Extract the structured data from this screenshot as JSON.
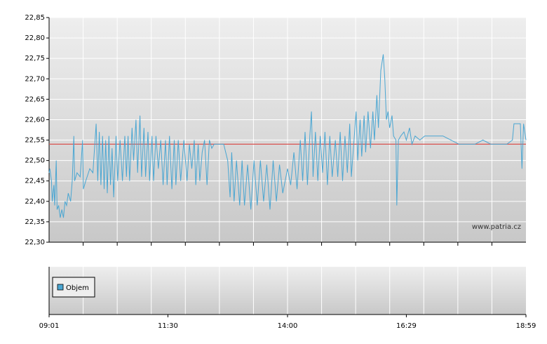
{
  "chart_data": [
    {
      "type": "line",
      "color": "#4aa6d2",
      "grid": true,
      "watermark": "www.patria.cz",
      "reference_line": {
        "value": 22.54,
        "color": "#d9534f"
      },
      "ylim": [
        22.3,
        22.85
      ],
      "yticks": [
        {
          "value": 22.3,
          "label": "22,30"
        },
        {
          "value": 22.35,
          "label": "22,35"
        },
        {
          "value": 22.4,
          "label": "22,40"
        },
        {
          "value": 22.45,
          "label": "22,45"
        },
        {
          "value": 22.5,
          "label": "22,50"
        },
        {
          "value": 22.55,
          "label": "22,55"
        },
        {
          "value": 22.6,
          "label": "22,60"
        },
        {
          "value": 22.65,
          "label": "22,65"
        },
        {
          "value": 22.7,
          "label": "22,70"
        },
        {
          "value": 22.75,
          "label": "22,75"
        },
        {
          "value": 22.8,
          "label": "22,80"
        },
        {
          "value": 22.85,
          "label": "22,85"
        }
      ],
      "xlim": [
        "09:01",
        "18:59"
      ],
      "xticks": [
        "09:01",
        "11:30",
        "14:00",
        "16:29",
        "18:59"
      ],
      "x": [
        "09:01",
        "09:02",
        "09:04",
        "09:05",
        "09:07",
        "09:08",
        "09:10",
        "09:11",
        "09:13",
        "09:15",
        "09:17",
        "09:19",
        "09:21",
        "09:23",
        "09:25",
        "09:28",
        "09:30",
        "09:32",
        "09:33",
        "09:36",
        "09:40",
        "09:43",
        "09:44",
        "09:47",
        "09:52",
        "09:56",
        "10:00",
        "10:02",
        "10:04",
        "10:06",
        "10:08",
        "10:10",
        "10:12",
        "10:14",
        "10:16",
        "10:18",
        "10:20",
        "10:22",
        "10:25",
        "10:27",
        "10:30",
        "10:33",
        "10:36",
        "10:38",
        "10:40",
        "10:42",
        "10:45",
        "10:47",
        "10:50",
        "10:52",
        "10:55",
        "10:57",
        "11:00",
        "11:02",
        "11:05",
        "11:07",
        "11:10",
        "11:12",
        "11:15",
        "11:18",
        "11:21",
        "11:24",
        "11:27",
        "11:29",
        "11:32",
        "11:35",
        "11:38",
        "11:40",
        "11:43",
        "11:46",
        "11:50",
        "11:54",
        "11:57",
        "12:00",
        "12:03",
        "12:05",
        "12:08",
        "12:10",
        "12:13",
        "12:16",
        "12:19",
        "12:22",
        "12:25",
        "12:28",
        "12:31",
        "12:35",
        "12:40",
        "12:45",
        "12:48",
        "12:50",
        "12:53",
        "12:56",
        "13:00",
        "13:03",
        "13:06",
        "13:10",
        "13:14",
        "13:18",
        "13:22",
        "13:26",
        "13:30",
        "13:34",
        "13:38",
        "13:42",
        "13:46",
        "13:50",
        "13:54",
        "14:00",
        "14:04",
        "14:08",
        "14:12",
        "14:16",
        "14:19",
        "14:22",
        "14:25",
        "14:28",
        "14:30",
        "14:32",
        "14:35",
        "14:38",
        "14:41",
        "14:44",
        "14:47",
        "14:50",
        "14:53",
        "14:56",
        "15:00",
        "15:03",
        "15:06",
        "15:09",
        "15:12",
        "15:15",
        "15:18",
        "15:20",
        "15:23",
        "15:26",
        "15:28",
        "15:31",
        "15:33",
        "15:36",
        "15:38",
        "15:41",
        "15:44",
        "15:47",
        "15:49",
        "15:52",
        "15:54",
        "15:57",
        "16:00",
        "16:02",
        "16:04",
        "16:06",
        "16:08",
        "16:11",
        "16:13",
        "16:16",
        "16:17",
        "16:19",
        "16:22",
        "16:26",
        "16:29",
        "16:33",
        "16:36",
        "16:40",
        "16:46",
        "16:52",
        "17:00",
        "17:15",
        "17:35",
        "17:55",
        "18:05",
        "18:15",
        "18:35",
        "18:42",
        "18:44",
        "18:52",
        "18:54",
        "18:56",
        "18:59"
      ],
      "values": [
        22.47,
        22.48,
        22.45,
        22.4,
        22.44,
        22.39,
        22.5,
        22.38,
        22.39,
        22.36,
        22.38,
        22.36,
        22.4,
        22.39,
        22.42,
        22.4,
        22.45,
        22.56,
        22.45,
        22.47,
        22.46,
        22.55,
        22.43,
        22.45,
        22.48,
        22.47,
        22.59,
        22.45,
        22.57,
        22.44,
        22.56,
        22.43,
        22.55,
        22.42,
        22.56,
        22.44,
        22.53,
        22.41,
        22.56,
        22.45,
        22.55,
        22.45,
        22.56,
        22.46,
        22.56,
        22.45,
        22.58,
        22.5,
        22.6,
        22.47,
        22.61,
        22.46,
        22.58,
        22.46,
        22.57,
        22.45,
        22.56,
        22.45,
        22.56,
        22.48,
        22.55,
        22.44,
        22.55,
        22.44,
        22.56,
        22.43,
        22.55,
        22.44,
        22.55,
        22.45,
        22.55,
        22.45,
        22.54,
        22.48,
        22.55,
        22.44,
        22.54,
        22.45,
        22.52,
        22.55,
        22.44,
        22.55,
        22.53,
        22.54,
        22.54,
        22.54,
        22.54,
        22.5,
        22.41,
        22.52,
        22.4,
        22.5,
        22.39,
        22.5,
        22.39,
        22.49,
        22.38,
        22.5,
        22.39,
        22.5,
        22.4,
        22.49,
        22.38,
        22.5,
        22.4,
        22.49,
        22.42,
        22.48,
        22.44,
        22.52,
        22.43,
        22.55,
        22.45,
        22.57,
        22.44,
        22.56,
        22.62,
        22.46,
        22.57,
        22.45,
        22.56,
        22.47,
        22.57,
        22.44,
        22.56,
        22.46,
        22.55,
        22.46,
        22.57,
        22.45,
        22.56,
        22.47,
        22.59,
        22.46,
        22.54,
        22.62,
        22.5,
        22.6,
        22.51,
        22.61,
        22.52,
        22.62,
        22.53,
        22.62,
        22.55,
        22.66,
        22.58,
        22.72,
        22.76,
        22.7,
        22.6,
        22.62,
        22.58,
        22.61,
        22.56,
        22.55,
        22.39,
        22.55,
        22.56,
        22.57,
        22.55,
        22.58,
        22.54,
        22.56,
        22.55,
        22.56,
        22.56,
        22.56,
        22.54,
        22.54,
        22.55,
        22.54,
        22.54,
        22.55,
        22.59,
        22.59,
        22.48,
        22.59,
        22.55
      ]
    },
    {
      "type": "bar",
      "legend": "upper left",
      "series": [
        {
          "name": "Objem",
          "color": "#4aa6d2",
          "values": []
        }
      ]
    }
  ]
}
